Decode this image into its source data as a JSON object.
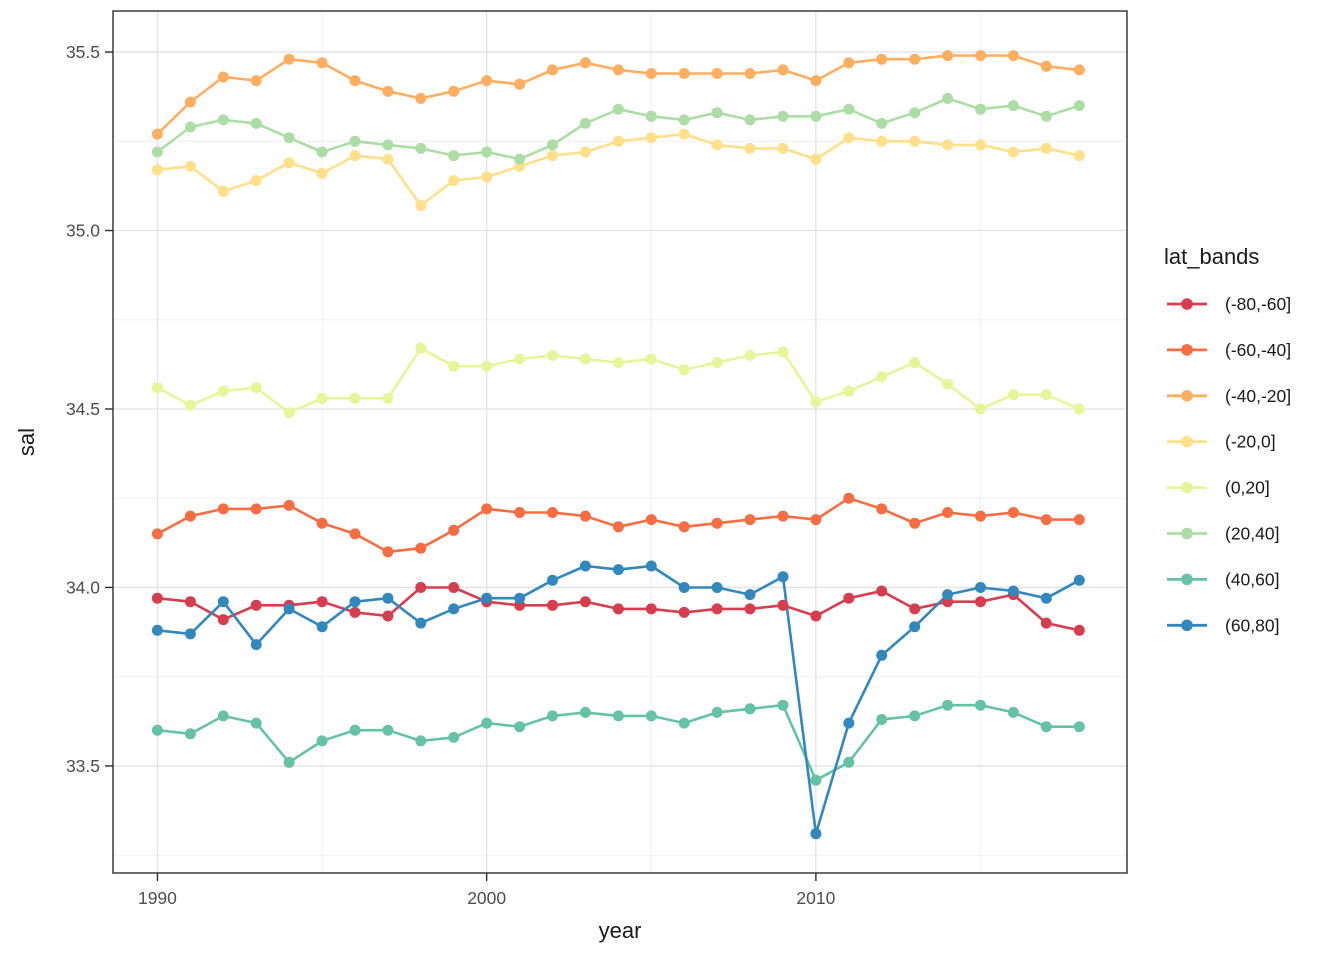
{
  "chart_data": {
    "type": "line",
    "title": "",
    "xlabel": "year",
    "ylabel": "sal",
    "legend_title": "lat_bands",
    "legend_position": "right",
    "grid": true,
    "xlim": [
      1988.65,
      2019.45
    ],
    "ylim": [
      33.2,
      35.615
    ],
    "x_ticks": [
      1990,
      2000,
      2010
    ],
    "x_tick_labels": [
      "1990",
      "2000",
      "2010"
    ],
    "x_minor": [
      1995,
      2005,
      2015
    ],
    "y_ticks": [
      33.5,
      34.0,
      34.5,
      35.0,
      35.5
    ],
    "y_tick_labels": [
      "33.5",
      "34.0",
      "34.5",
      "35.0",
      "35.5"
    ],
    "y_minor": [
      33.25,
      33.75,
      34.25,
      34.75,
      35.25
    ],
    "x": [
      1990,
      1991,
      1992,
      1993,
      1994,
      1995,
      1996,
      1997,
      1998,
      1999,
      2000,
      2001,
      2002,
      2003,
      2004,
      2005,
      2006,
      2007,
      2008,
      2009,
      2010,
      2011,
      2012,
      2013,
      2014,
      2015,
      2016,
      2017,
      2018
    ],
    "series": [
      {
        "name": "(-80,-60]",
        "color": "#d53e4f",
        "values": [
          33.97,
          33.96,
          33.91,
          33.95,
          33.95,
          33.96,
          33.93,
          33.92,
          34.0,
          34.0,
          33.96,
          33.95,
          33.95,
          33.96,
          33.94,
          33.94,
          33.93,
          33.94,
          33.94,
          33.95,
          33.92,
          33.97,
          33.99,
          33.94,
          33.96,
          33.96,
          33.98,
          33.9,
          33.88
        ]
      },
      {
        "name": "(-60,-40]",
        "color": "#f46d43",
        "values": [
          34.15,
          34.2,
          34.22,
          34.22,
          34.23,
          34.18,
          34.15,
          34.1,
          34.11,
          34.16,
          34.22,
          34.21,
          34.21,
          34.2,
          34.17,
          34.19,
          34.17,
          34.18,
          34.19,
          34.2,
          34.19,
          34.25,
          34.22,
          34.18,
          34.21,
          34.2,
          34.21,
          34.19,
          34.19
        ]
      },
      {
        "name": "(-40,-20]",
        "color": "#fdae61",
        "values": [
          35.27,
          35.36,
          35.43,
          35.42,
          35.48,
          35.47,
          35.42,
          35.39,
          35.37,
          35.39,
          35.42,
          35.41,
          35.45,
          35.47,
          35.45,
          35.44,
          35.44,
          35.44,
          35.44,
          35.45,
          35.42,
          35.47,
          35.48,
          35.48,
          35.49,
          35.49,
          35.49,
          35.46,
          35.45
        ]
      },
      {
        "name": "(-20,0]",
        "color": "#fee08b",
        "values": [
          35.17,
          35.18,
          35.11,
          35.14,
          35.19,
          35.16,
          35.21,
          35.2,
          35.07,
          35.14,
          35.15,
          35.18,
          35.21,
          35.22,
          35.25,
          35.26,
          35.27,
          35.24,
          35.23,
          35.23,
          35.2,
          35.26,
          35.25,
          35.25,
          35.24,
          35.24,
          35.22,
          35.23,
          35.21
        ]
      },
      {
        "name": "(0,20]",
        "color": "#e6f598",
        "values": [
          34.56,
          34.51,
          34.55,
          34.56,
          34.49,
          34.53,
          34.53,
          34.53,
          34.67,
          34.62,
          34.62,
          34.64,
          34.65,
          34.64,
          34.63,
          34.64,
          34.61,
          34.63,
          34.65,
          34.66,
          34.52,
          34.55,
          34.59,
          34.63,
          34.57,
          34.5,
          34.54,
          34.54,
          34.5
        ]
      },
      {
        "name": "(20,40]",
        "color": "#abdda4",
        "values": [
          35.22,
          35.29,
          35.31,
          35.3,
          35.26,
          35.22,
          35.25,
          35.24,
          35.23,
          35.21,
          35.22,
          35.2,
          35.24,
          35.3,
          35.34,
          35.32,
          35.31,
          35.33,
          35.31,
          35.32,
          35.32,
          35.34,
          35.3,
          35.33,
          35.37,
          35.34,
          35.35,
          35.32,
          35.35
        ]
      },
      {
        "name": "(40,60]",
        "color": "#66c2a5",
        "values": [
          33.6,
          33.59,
          33.64,
          33.62,
          33.51,
          33.57,
          33.6,
          33.6,
          33.57,
          33.58,
          33.62,
          33.61,
          33.64,
          33.65,
          33.64,
          33.64,
          33.62,
          33.65,
          33.66,
          33.67,
          33.46,
          33.51,
          33.63,
          33.64,
          33.67,
          33.67,
          33.65,
          33.61,
          33.61
        ]
      },
      {
        "name": "(60,80]",
        "color": "#3288bd",
        "values": [
          33.88,
          33.87,
          33.96,
          33.84,
          33.94,
          33.89,
          33.96,
          33.97,
          33.9,
          33.94,
          33.97,
          33.97,
          34.02,
          34.06,
          34.05,
          34.06,
          34.0,
          34.0,
          33.98,
          34.03,
          33.31,
          33.62,
          33.81,
          33.89,
          33.98,
          34.0,
          33.99,
          33.97,
          34.02
        ]
      }
    ],
    "style": {
      "panel_border": "#2d2d2d",
      "grid_major": "#e2e2e2",
      "grid_minor": "#f0f0f0",
      "tick_color": "#2d2d2d",
      "tick_label_color": "#4d4d4d",
      "axis_title_color": "#1a1a1a",
      "legend_text_color": "#1a1a1a",
      "background": "#ffffff"
    }
  }
}
